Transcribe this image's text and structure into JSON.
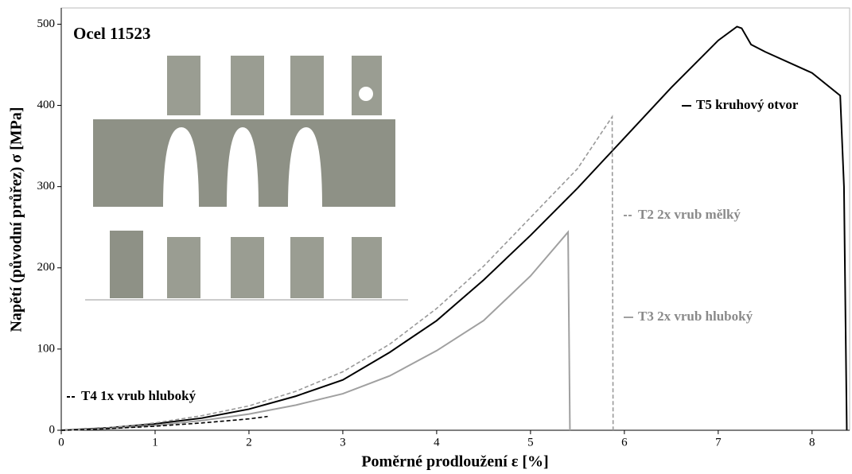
{
  "chart_data": {
    "type": "line",
    "title": "Ocel 11523",
    "x_label": "Poměrné prodloužení ε [%]",
    "y_label": "Napětí (původní průřez) σ [MPa]",
    "xlim": [
      0,
      8.4
    ],
    "ylim": [
      0,
      520
    ],
    "xticks": [
      0,
      1,
      2,
      3,
      4,
      5,
      6,
      7,
      8
    ],
    "yticks": [
      0,
      100,
      200,
      300,
      400,
      500
    ],
    "series": [
      {
        "name": "T5 kruhový otvor",
        "color": "#000000",
        "dashed": false,
        "x": [
          0,
          0.5,
          1,
          1.5,
          2,
          2.5,
          3,
          3.5,
          4,
          4.5,
          5,
          5.5,
          6,
          6.5,
          7,
          7.2,
          7.25,
          7.35,
          7.5,
          8,
          8.3,
          8.34,
          8.37
        ],
        "values": [
          0,
          3,
          8,
          15,
          26,
          42,
          62,
          96,
          135,
          185,
          240,
          298,
          360,
          422,
          480,
          497,
          495,
          475,
          466,
          440,
          412,
          300,
          0
        ]
      },
      {
        "name": "T2 2x vrub mělký",
        "color": "#999999",
        "dashed": true,
        "x": [
          0,
          0.5,
          1,
          1.5,
          2,
          2.5,
          3,
          3.5,
          4,
          4.5,
          5,
          5.5,
          5.87,
          5.88
        ],
        "values": [
          0,
          3,
          9,
          18,
          30,
          48,
          72,
          106,
          150,
          202,
          262,
          322,
          386,
          0
        ]
      },
      {
        "name": "T3 2x vrub hluboký",
        "color": "#a0a0a0",
        "dashed": false,
        "x": [
          0,
          0.5,
          1,
          1.5,
          2,
          2.5,
          3,
          3.5,
          4,
          4.5,
          5,
          5.4,
          5.42
        ],
        "values": [
          0,
          2,
          6,
          12,
          20,
          31,
          45,
          67,
          98,
          135,
          190,
          244,
          0
        ]
      },
      {
        "name": "T4 1x vrub hluboký",
        "color": "#000000",
        "dashed": true,
        "x": [
          0,
          0.5,
          1,
          1.5,
          2,
          2.2
        ],
        "values": [
          0,
          2,
          5,
          9,
          14,
          17
        ]
      }
    ]
  }
}
